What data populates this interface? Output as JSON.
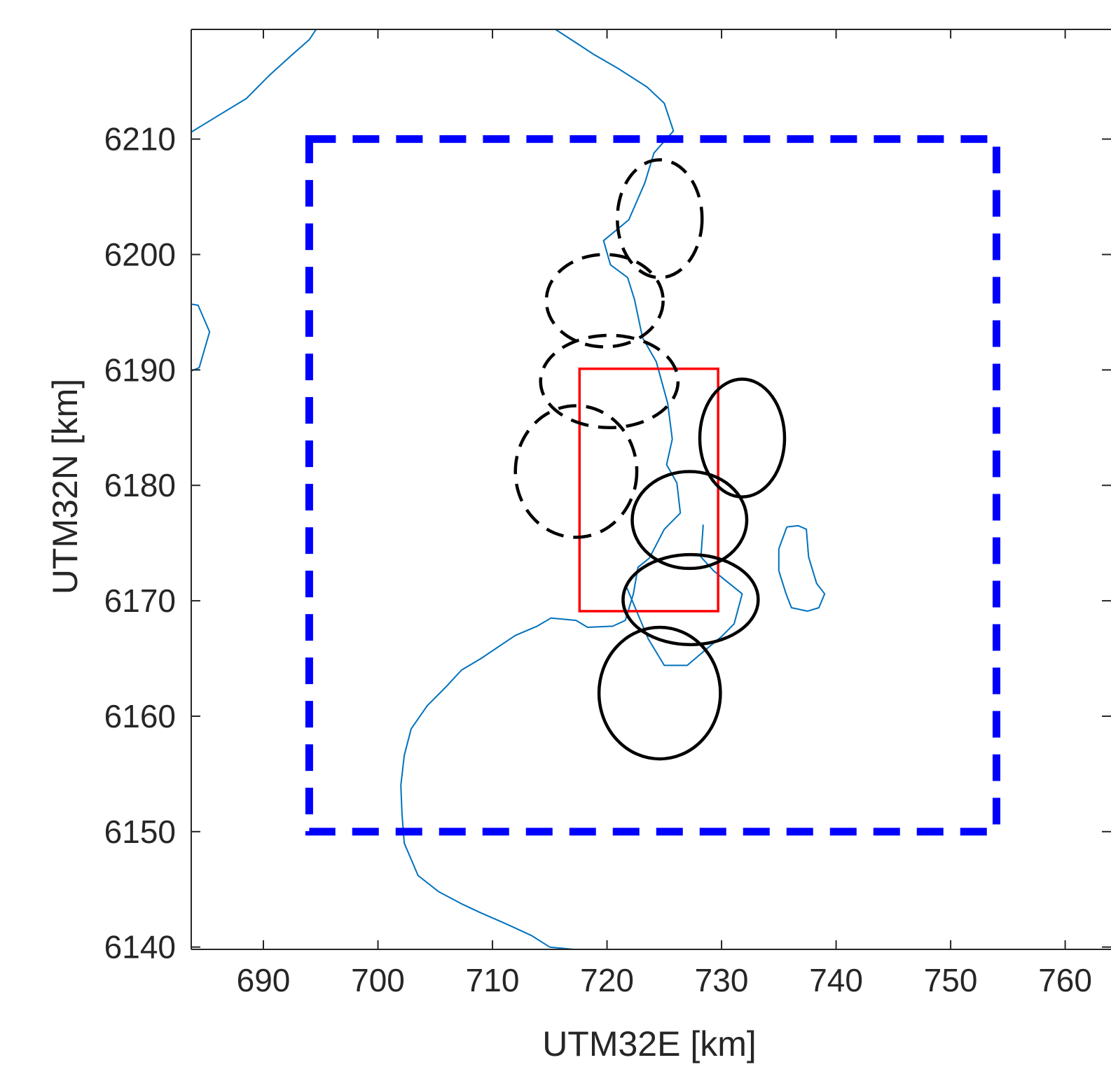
{
  "chart_data": {
    "type": "map",
    "title": "",
    "xlabel": "UTM32E [km]",
    "ylabel": "UTM32N [km]",
    "xlim": [
      683.7,
      764
    ],
    "ylim": [
      6139.8,
      6219.5
    ],
    "grid": false,
    "xticks": [
      690,
      700,
      710,
      720,
      730,
      740,
      750,
      760
    ],
    "yticks": [
      6140,
      6150,
      6160,
      6170,
      6180,
      6190,
      6200,
      6210
    ],
    "colors": {
      "coastline": "#0072bd",
      "dashed_box": "#0000ff",
      "red_box": "#ff0000",
      "ellipses": "#000000",
      "axes": "#262626"
    },
    "dashed_box": {
      "x": [
        694,
        754
      ],
      "y": [
        6150,
        6210
      ]
    },
    "red_box": {
      "x": [
        717.6,
        729.7
      ],
      "y": [
        6169.1,
        6190.1
      ]
    },
    "ellipses_dashed": [
      {
        "cx": 724.6,
        "cy": 6203.1,
        "rx": 3.7,
        "ry": 5.1
      },
      {
        "cx": 719.8,
        "cy": 6196.0,
        "rx": 5.1,
        "ry": 4.0
      },
      {
        "cx": 720.2,
        "cy": 6189.0,
        "rx": 6.0,
        "ry": 4.0
      },
      {
        "cx": 717.3,
        "cy": 6181.2,
        "rx": 5.3,
        "ry": 5.7
      }
    ],
    "ellipses_solid": [
      {
        "cx": 731.8,
        "cy": 6184.1,
        "rx": 3.7,
        "ry": 5.1
      },
      {
        "cx": 727.2,
        "cy": 6177.0,
        "rx": 5.0,
        "ry": 4.2
      },
      {
        "cx": 727.3,
        "cy": 6170.1,
        "rx": 5.9,
        "ry": 3.9
      },
      {
        "cx": 724.6,
        "cy": 6162.0,
        "rx": 5.3,
        "ry": 5.7
      }
    ],
    "coastline": [
      [
        [
          683.7,
          6210.6
        ],
        [
          686.0,
          6212.0
        ],
        [
          688.5,
          6213.5
        ],
        [
          690.5,
          6215.5
        ],
        [
          692.5,
          6217.3
        ],
        [
          694.0,
          6218.6
        ],
        [
          694.6,
          6219.5
        ]
      ],
      [
        [
          715.5,
          6219.5
        ],
        [
          717.2,
          6218.4
        ],
        [
          718.9,
          6217.3
        ],
        [
          721.0,
          6216.1
        ],
        [
          723.5,
          6214.5
        ],
        [
          725.0,
          6213.1
        ],
        [
          725.8,
          6210.7
        ],
        [
          724.1,
          6208.8
        ],
        [
          723.3,
          6206.2
        ],
        [
          721.9,
          6203.0
        ],
        [
          719.7,
          6201.2
        ],
        [
          720.3,
          6199.1
        ],
        [
          721.8,
          6198.0
        ],
        [
          722.4,
          6196.1
        ],
        [
          723.1,
          6192.8
        ],
        [
          724.3,
          6190.7
        ],
        [
          725.3,
          6187.1
        ],
        [
          725.7,
          6184.0
        ],
        [
          725.2,
          6181.8
        ],
        [
          726.1,
          6180.2
        ],
        [
          726.4,
          6177.6
        ],
        [
          725.0,
          6176.2
        ],
        [
          723.7,
          6173.7
        ],
        [
          722.7,
          6172.9
        ],
        [
          722.3,
          6170.6
        ],
        [
          721.6,
          6168.3
        ],
        [
          720.5,
          6167.8
        ],
        [
          718.3,
          6167.7
        ],
        [
          717.3,
          6168.3
        ],
        [
          715.1,
          6168.5
        ],
        [
          713.9,
          6167.8
        ],
        [
          712.0,
          6167.0
        ],
        [
          710.8,
          6166.2
        ],
        [
          709.0,
          6165.0
        ],
        [
          707.3,
          6164.0
        ],
        [
          706.0,
          6162.6
        ],
        [
          704.3,
          6160.9
        ],
        [
          702.9,
          6158.9
        ],
        [
          702.3,
          6156.6
        ],
        [
          702.0,
          6154.0
        ],
        [
          702.1,
          6151.5
        ],
        [
          702.3,
          6149.0
        ],
        [
          703.5,
          6146.2
        ],
        [
          705.3,
          6144.8
        ],
        [
          707.4,
          6143.7
        ],
        [
          708.9,
          6143.0
        ],
        [
          711.2,
          6142.0
        ],
        [
          713.4,
          6141.0
        ],
        [
          715.0,
          6140.0
        ],
        [
          717.1,
          6139.8
        ]
      ],
      [
        [
          683.7,
          6195.7
        ],
        [
          684.3,
          6195.6
        ],
        [
          685.3,
          6193.3
        ],
        [
          684.4,
          6190.2
        ],
        [
          683.7,
          6189.9
        ]
      ],
      [
        [
          721.7,
          6171.2
        ],
        [
          723.6,
          6166.7
        ],
        [
          725.0,
          6164.4
        ],
        [
          727.0,
          6164.4
        ],
        [
          728.9,
          6166.0
        ],
        [
          730.0,
          6166.9
        ],
        [
          731.1,
          6168.0
        ],
        [
          731.8,
          6170.6
        ],
        [
          729.3,
          6172.6
        ],
        [
          728.2,
          6173.8
        ],
        [
          728.4,
          6176.6
        ]
      ],
      [
        [
          735.7,
          6176.4
        ],
        [
          736.7,
          6176.5
        ],
        [
          737.4,
          6176.2
        ],
        [
          737.6,
          6173.8
        ],
        [
          738.3,
          6171.5
        ],
        [
          739.0,
          6170.6
        ],
        [
          738.5,
          6169.4
        ],
        [
          737.5,
          6169.1
        ],
        [
          736.1,
          6169.4
        ],
        [
          735.6,
          6170.7
        ],
        [
          735.0,
          6172.6
        ],
        [
          735.0,
          6174.5
        ],
        [
          735.7,
          6176.4
        ]
      ]
    ]
  }
}
